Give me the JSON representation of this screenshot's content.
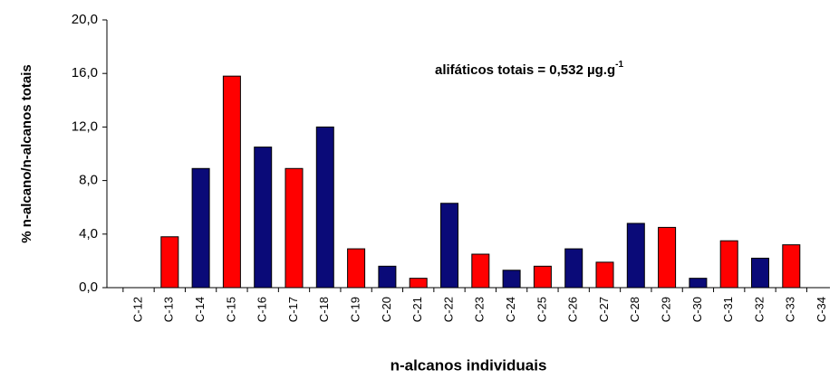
{
  "chart_data": {
    "type": "bar",
    "ylabel": "% n-alcano/n-alcanos totais",
    "xlabel": "n-alcanos individuais",
    "annotation": {
      "text": "alifáticos totais = 0,532 µg.g",
      "superscript": "-1"
    },
    "categories": [
      "C-12",
      "C-13",
      "C-14",
      "C-15",
      "C-16",
      "C-17",
      "C-18",
      "C-19",
      "C-20",
      "C-21",
      "C-22",
      "C-23",
      "C-24",
      "C-25",
      "C-26",
      "C-27",
      "C-28",
      "C-29",
      "C-30",
      "C-31",
      "C-32",
      "C-33",
      "C-34"
    ],
    "values": [
      null,
      3.8,
      8.9,
      15.8,
      10.5,
      8.9,
      12.0,
      2.9,
      1.6,
      0.7,
      6.3,
      2.5,
      1.3,
      1.6,
      2.9,
      1.9,
      4.8,
      4.5,
      0.7,
      3.5,
      2.2,
      3.2,
      null
    ],
    "colors": [
      "#0a0a78",
      "#ff0000",
      "#0a0a78",
      "#ff0000",
      "#0a0a78",
      "#ff0000",
      "#0a0a78",
      "#ff0000",
      "#0a0a78",
      "#ff0000",
      "#0a0a78",
      "#ff0000",
      "#0a0a78",
      "#ff0000",
      "#0a0a78",
      "#ff0000",
      "#0a0a78",
      "#ff0000",
      "#0a0a78",
      "#ff0000",
      "#0a0a78",
      "#ff0000",
      "#0a0a78"
    ],
    "ylim": [
      0,
      20
    ],
    "yticks": [
      {
        "value": 0,
        "label": "0,0"
      },
      {
        "value": 4,
        "label": "4,0"
      },
      {
        "value": 8,
        "label": "8,0"
      },
      {
        "value": 12,
        "label": "12,0"
      },
      {
        "value": 16,
        "label": "16,0"
      },
      {
        "value": 20,
        "label": "20,0"
      }
    ],
    "grid": false
  }
}
